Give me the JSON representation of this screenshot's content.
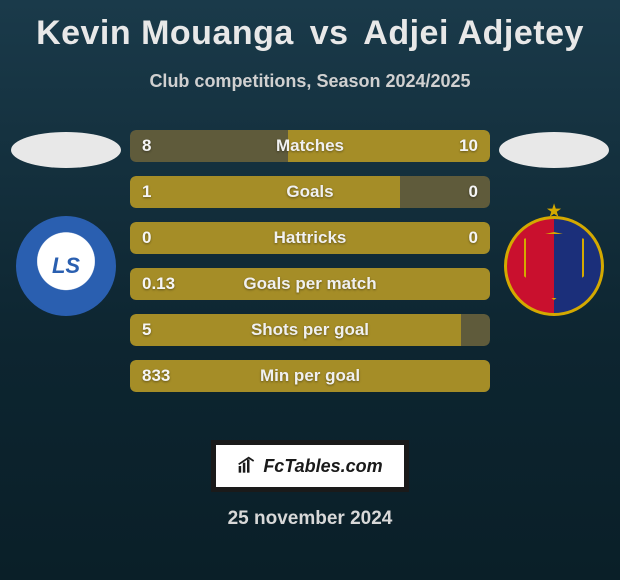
{
  "title": {
    "player1": "Kevin Mouanga",
    "vs": "vs",
    "player2": "Adjei Adjetey"
  },
  "subtitle": "Club competitions, Season 2024/2025",
  "date": "25 november 2024",
  "footer_brand": "FcTables.com",
  "colors": {
    "background_gradient_top": "#1a3a4a",
    "background_gradient_bottom": "#0a1f28",
    "bar_win": "#a58d27",
    "bar_lose": "#5f5b3b",
    "bar_tie": "#a58d27",
    "text_primary": "#e8e8e8",
    "footer_card_bg": "#ffffff",
    "footer_card_border": "#1a1a1a"
  },
  "badges": {
    "left": {
      "name": "Lausanne Sport",
      "css_class": "badge-lausanne"
    },
    "right": {
      "name": "FC Basel",
      "css_class": "badge-basel"
    }
  },
  "stats": [
    {
      "label": "Matches",
      "left_val": "8",
      "right_val": "10",
      "left_pct": 44,
      "right_pct": 56,
      "left_color": "#5f5b3b",
      "right_color": "#a58d27"
    },
    {
      "label": "Goals",
      "left_val": "1",
      "right_val": "0",
      "left_pct": 75,
      "right_pct": 25,
      "left_color": "#a58d27",
      "right_color": "#5f5b3b"
    },
    {
      "label": "Hattricks",
      "left_val": "0",
      "right_val": "0",
      "left_pct": 50,
      "right_pct": 50,
      "left_color": "#a58d27",
      "right_color": "#a58d27"
    },
    {
      "label": "Goals per match",
      "left_val": "0.13",
      "right_val": "",
      "left_pct": 100,
      "right_pct": 0,
      "left_color": "#a58d27",
      "right_color": "#5f5b3b"
    },
    {
      "label": "Shots per goal",
      "left_val": "5",
      "right_val": "",
      "left_pct": 92,
      "right_pct": 8,
      "left_color": "#a58d27",
      "right_color": "#5f5b3b"
    },
    {
      "label": "Min per goal",
      "left_val": "833",
      "right_val": "",
      "left_pct": 100,
      "right_pct": 0,
      "left_color": "#a58d27",
      "right_color": "#5f5b3b"
    }
  ]
}
